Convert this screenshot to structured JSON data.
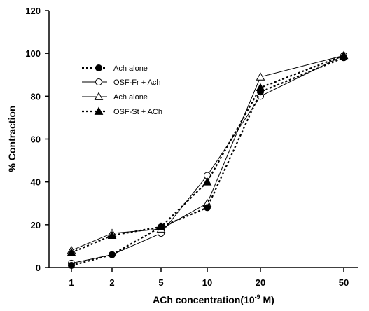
{
  "chart_data": {
    "type": "line",
    "title": "",
    "xlabel": "ACh concentration(10",
    "xlabel_sup": "-9",
    "xlabel_suffix": " M)",
    "ylabel": "% Contraction",
    "ylim": [
      0,
      120
    ],
    "yticks": [
      "0",
      "20",
      "40",
      "60",
      "80",
      "100",
      "120"
    ],
    "categories": [
      "1",
      "2",
      "5",
      "10",
      "20",
      "50"
    ],
    "grid": false,
    "legend_position": "upper-left",
    "series": [
      {
        "name": "Ach alone",
        "marker": "filled-circle",
        "line": "dashed",
        "values": [
          1,
          6,
          19,
          28,
          82,
          98
        ]
      },
      {
        "name": "OSF-Fr + Ach",
        "marker": "open-circle",
        "line": "solid",
        "values": [
          2,
          6,
          16,
          43,
          80,
          99
        ]
      },
      {
        "name": "Ach alone",
        "marker": "open-triangle",
        "line": "solid",
        "values": [
          8,
          16,
          18,
          30,
          89,
          99
        ]
      },
      {
        "name": "OSF-St + ACh",
        "marker": "filled-triangle",
        "line": "dashed",
        "values": [
          7,
          15,
          19,
          40,
          84,
          99
        ]
      }
    ]
  }
}
